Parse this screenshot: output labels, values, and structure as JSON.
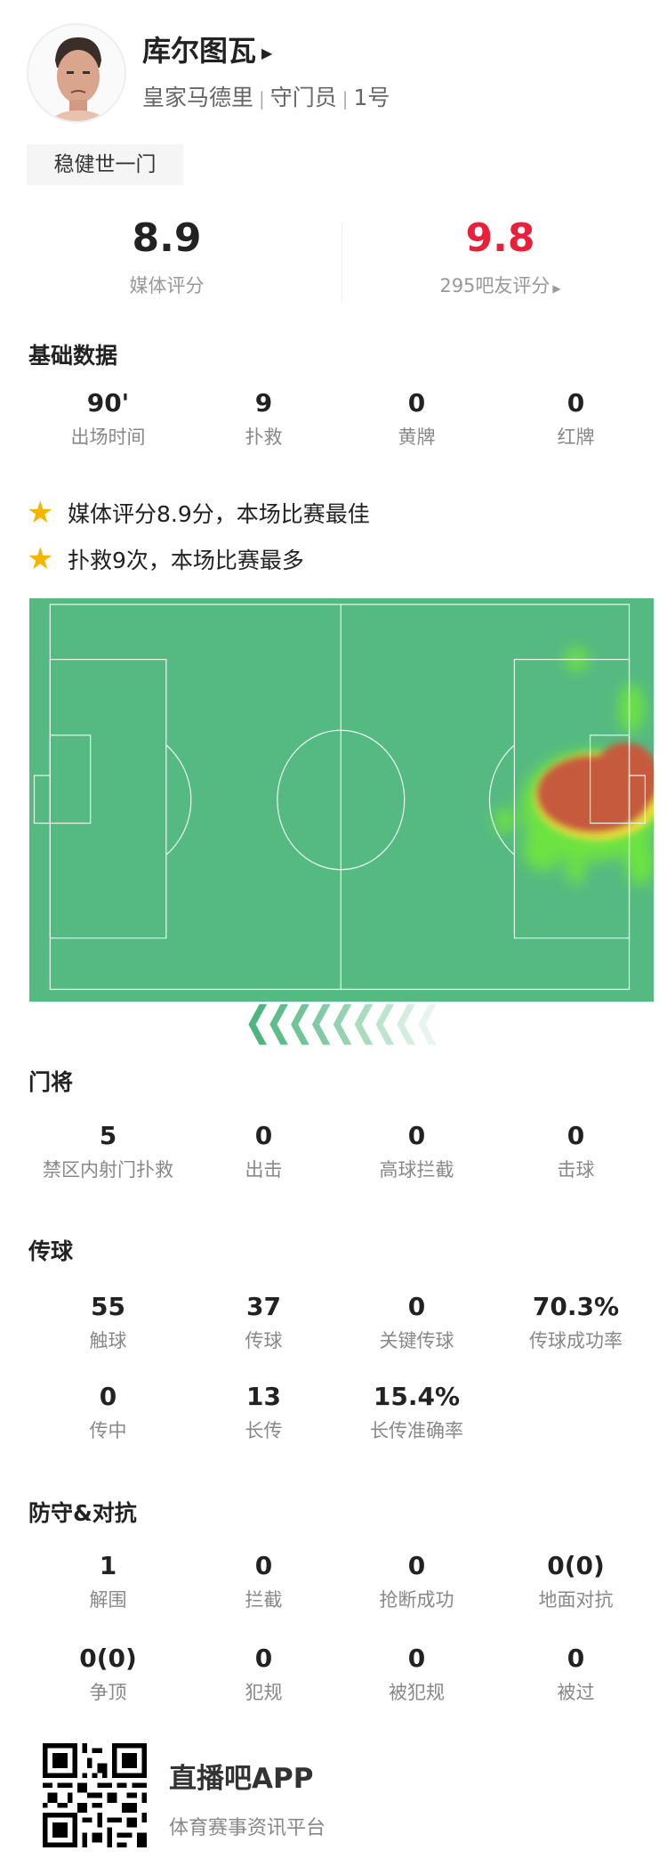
{
  "player": {
    "name": "库尔图瓦",
    "team": "皇家马德里",
    "position": "守门员",
    "number": "1号",
    "tag": "稳健世一门"
  },
  "ratings": {
    "media_score": "8.9",
    "media_label": "媒体评分",
    "fan_score": "9.8",
    "fan_label": "295吧友评分",
    "fan_color": "#e8203a"
  },
  "basic": {
    "title": "基础数据",
    "stats": [
      {
        "value": "90'",
        "label": "出场时间"
      },
      {
        "value": "9",
        "label": "扑救"
      },
      {
        "value": "0",
        "label": "黄牌"
      },
      {
        "value": "0",
        "label": "红牌"
      }
    ]
  },
  "highlights": [
    "媒体评分8.9分，本场比赛最佳",
    "扑救9次，本场比赛最多"
  ],
  "heatmap": {
    "pitch_color": "#55b982",
    "attack_direction": "left"
  },
  "goalkeeping": {
    "title": "门将",
    "stats": [
      {
        "value": "5",
        "label": "禁区内射门扑救"
      },
      {
        "value": "0",
        "label": "出击"
      },
      {
        "value": "0",
        "label": "高球拦截"
      },
      {
        "value": "0",
        "label": "击球"
      }
    ]
  },
  "passing": {
    "title": "传球",
    "stats": [
      {
        "value": "55",
        "label": "触球"
      },
      {
        "value": "37",
        "label": "传球"
      },
      {
        "value": "0",
        "label": "关键传球"
      },
      {
        "value": "70.3%",
        "label": "传球成功率"
      },
      {
        "value": "0",
        "label": "传中"
      },
      {
        "value": "13",
        "label": "长传"
      },
      {
        "value": "15.4%",
        "label": "长传准确率"
      }
    ]
  },
  "defense": {
    "title": "防守&对抗",
    "stats": [
      {
        "value": "1",
        "label": "解围"
      },
      {
        "value": "0",
        "label": "拦截"
      },
      {
        "value": "0",
        "label": "抢断成功"
      },
      {
        "value": "0(0)",
        "label": "地面对抗"
      },
      {
        "value": "0(0)",
        "label": "争顶"
      },
      {
        "value": "0",
        "label": "犯规"
      },
      {
        "value": "0",
        "label": "被犯规"
      },
      {
        "value": "0",
        "label": "被过"
      }
    ]
  },
  "footer": {
    "app_name": "直播吧APP",
    "tagline": "体育赛事资讯平台"
  }
}
